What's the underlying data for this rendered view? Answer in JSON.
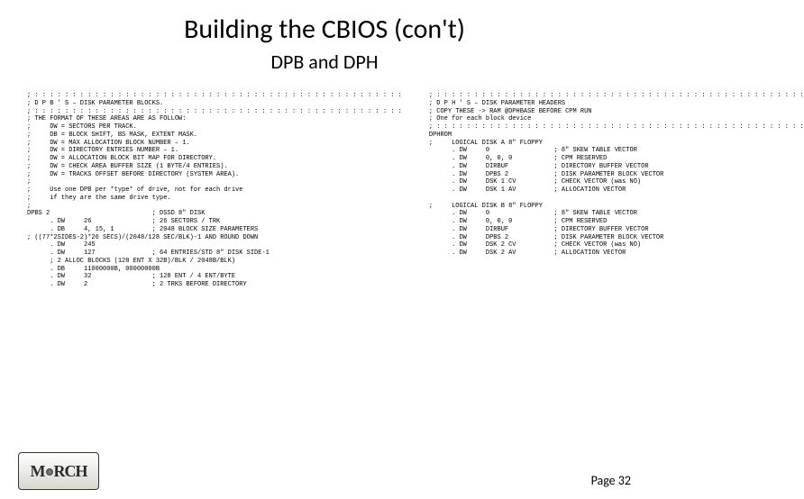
{
  "title": "Building the CBIOS (con't)",
  "subtitle": "DPB and DPH",
  "left_code": "; : : : : : : : : : : : : : : : : : : : : : : : : : : : : : : : : : : : : : : : : : : : : : : : : :\n; D P B ' S – DISK PARAMETER BLOCKS.\n; : : : : : : : : : : : : : : : : : : : : : : : : : : : : : : : : : : : : : : : : : : : : : : : : :\n; THE FORMAT OF THESE AREAS ARE AS FOLLOW:\n;     DW = SECTORS PER TRACK.\n;     DB = BLOCK SHIFT, BS MASK, EXTENT MASK.\n;     DW = MAX ALLOCATION BLOCK NUMBER – 1.\n;     DW = DIRECTORY ENTRIES NUMBER – 1.\n;     DW = ALLOCATION BLOCK BIT MAP FOR DIRECTORY.\n;     DW = CHECK AREA BUFFER SIZE (1 BYTE/4 ENTRIES).\n;     DW = TRACKS OFFSET BEFORE DIRECTORY (SYSTEM AREA).\n;\n;     Use one DPB per *type* of drive, not for each drive\n;     if they are the same drive type.\n;\nDPBS 2                           ; DSSD 8\" DISK\n      . DW     26                ; 26 SECTORS / TRK\n      . DB     4, 15, 1          ; 2048 BLOCK SIZE PARAMETERS\n; ((77*2SIDES-2)*26 SECS)/(2048/128 SEC/BLK)-1 AND ROUND DOWN\n      . DW     245\n      . DW     127               ; 64 ENTRIES/STD 8\" DISK SIDE-1\n      ; 2 ALLOC BLOCKS (128 ENT X 32B)/BLK / 2048B/BLK)\n      . DB     11000000B, 00000000B\n      . DW     32                ; 128 ENT / 4 ENT/BYTE\n      . DW     2                 ; 2 TRKS BEFORE DIRECTORY",
  "right_code": "; : : : : : : : : : : : : : : : : : : : : : : : : : : : : : : : : : : : : : : : : : : : : : : : : :\n; D P H ' S – DISK PARAMETER HEADERS\n; COPY THESE -> RAM @DPHBASE BEFORE CPM RUN\n; One for each block device\n; : : : : : : : : : : : : : : : : : : : : : : : : : : : : : : : : : : : : : : : : : : : : : : : : :\nDPHROM\n;     LOGICAL DISK A 8\" FLOPPY\n      . DW     0                 ; 8\" SKEW TABLE VECTOR\n      . DW     0, 0, 0           ; CPM RESERVED\n      . DW     DIRBUF            ; DIRECTORY BUFFER VECTOR\n      . DW     DPBS 2            ; DISK PARAMETER BLOCK VECTOR\n      . DW     DSK 1 CV          ; CHECK VECTOR (was NO)\n      . DW     DSK 1 AV          ; ALLOCATION VECTOR\n\n;     LOGICAL DISK B 8\" FLOPPY\n      . DW     0                 ; 8\" SKEW TABLE VECTOR\n      . DW     0, 0, 0           ; CPM RESERVED\n      . DW     DIRBUF            ; DIRECTORY BUFFER VECTOR\n      . DW     DPBS 2            ; DISK PARAMETER BLOCK VECTOR\n      . DW     DSK 2 CV          ; CHECK VECTOR (was NO)\n      . DW     DSK 2 AV          ; ALLOCATION VECTOR",
  "page_label": "Page 32",
  "logo_text": "MARCH",
  "colors": {
    "background": "#ffffff",
    "text": "#000000",
    "logo_border": "#333333"
  }
}
